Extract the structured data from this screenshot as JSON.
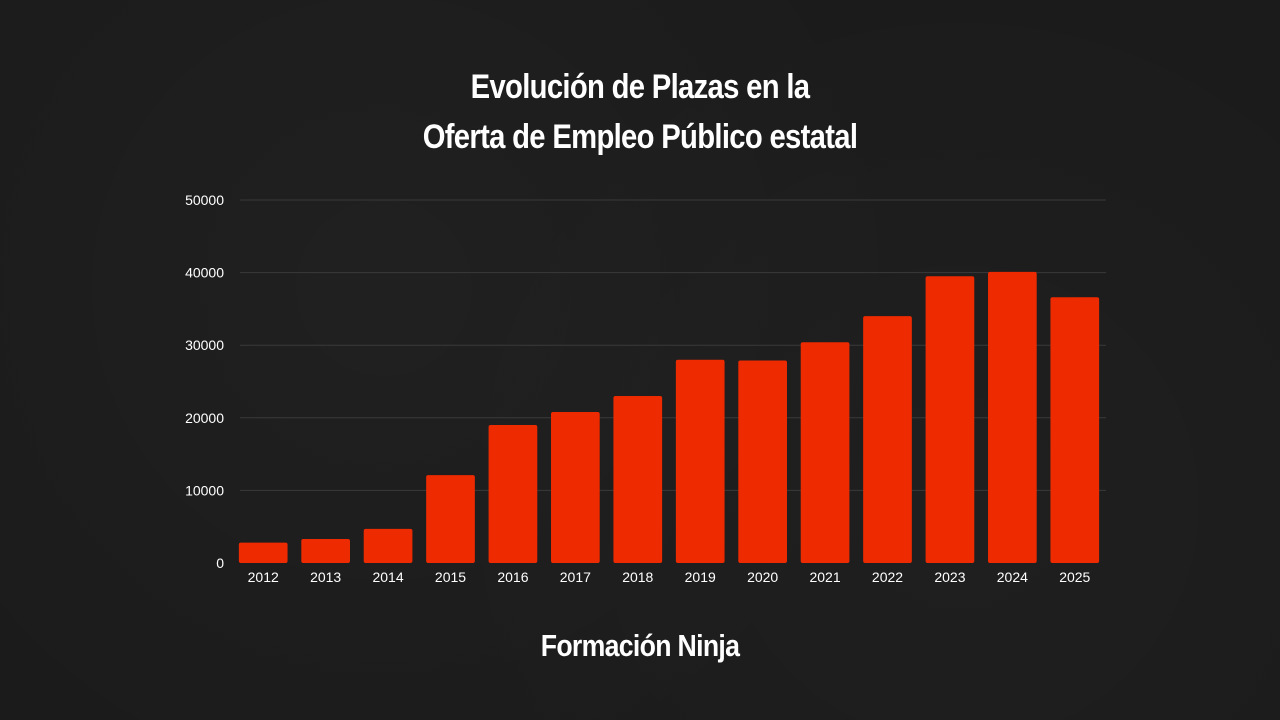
{
  "title": {
    "line1": "Evolución de Plazas en la",
    "line2": "Oferta de Empleo Público estatal"
  },
  "brand": "Formación Ninja",
  "colors": {
    "background": "#1b1b1b",
    "bar": "#ee2a00",
    "grid": "#3a3a3a",
    "text": "#ffffff"
  },
  "chart_data": {
    "type": "bar",
    "categories": [
      "2012",
      "2013",
      "2014",
      "2015",
      "2016",
      "2017",
      "2018",
      "2019",
      "2020",
      "2021",
      "2022",
      "2023",
      "2024",
      "2025"
    ],
    "values": [
      2800,
      3300,
      4700,
      12100,
      19000,
      20800,
      23000,
      28000,
      27900,
      30400,
      34000,
      39500,
      40100,
      36600
    ],
    "yticks": [
      0,
      10000,
      20000,
      30000,
      40000,
      50000
    ],
    "ylim": [
      0,
      50000
    ],
    "grid": true,
    "legend": "none",
    "xlabel": "",
    "ylabel": ""
  }
}
